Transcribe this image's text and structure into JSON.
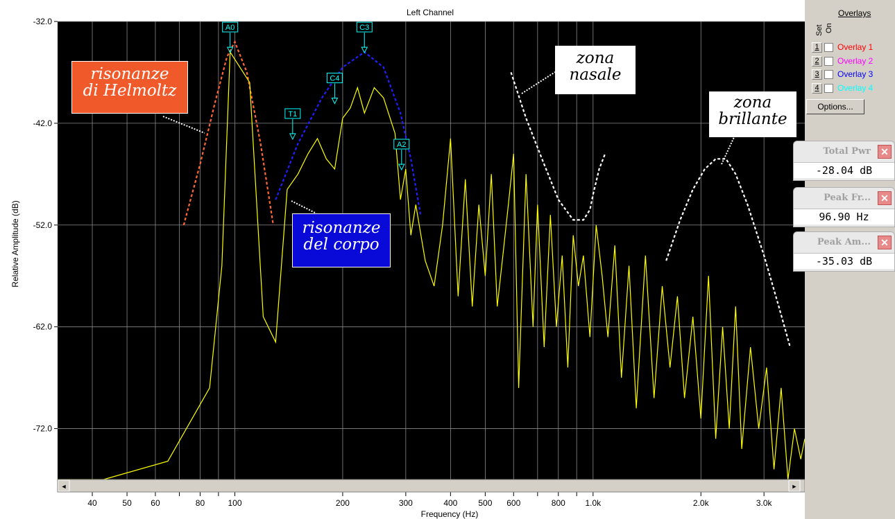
{
  "chart_data": {
    "type": "line",
    "title": "Left Channel",
    "xlabel": "Frequency (Hz)",
    "ylabel": "Relative Amplitude (dB)",
    "x_scale": "log",
    "xlim": [
      32,
      3900
    ],
    "ylim": [
      -77,
      -32
    ],
    "grid": true,
    "y_ticks": [
      {
        "value": -32,
        "label": "-32.0"
      },
      {
        "value": -42,
        "label": "-42.0"
      },
      {
        "value": -52,
        "label": "-52.0"
      },
      {
        "value": -62,
        "label": "-62.0"
      },
      {
        "value": -72,
        "label": "-72.0"
      }
    ],
    "x_ticks": [
      {
        "value": 40,
        "label": "40"
      },
      {
        "value": 50,
        "label": "50"
      },
      {
        "value": 60,
        "label": "60"
      },
      {
        "value": 80,
        "label": "80"
      },
      {
        "value": 100,
        "label": "100"
      },
      {
        "value": 200,
        "label": "200"
      },
      {
        "value": 300,
        "label": "300"
      },
      {
        "value": 400,
        "label": "400"
      },
      {
        "value": 500,
        "label": "500"
      },
      {
        "value": 600,
        "label": "600"
      },
      {
        "value": 800,
        "label": "800"
      },
      {
        "value": 1000,
        "label": "1.0k"
      },
      {
        "value": 2000,
        "label": "2.0k"
      },
      {
        "value": 3000,
        "label": "3.0k"
      }
    ],
    "series": [
      {
        "color": "#ffff00",
        "x": [
          32,
          43,
          65,
          85,
          92,
          97,
          110,
          120,
          130,
          140,
          150,
          160,
          170,
          180,
          190,
          200,
          210,
          220,
          230,
          245,
          260,
          280,
          290,
          300,
          310,
          320,
          340,
          360,
          380,
          400,
          420,
          440,
          460,
          480,
          500,
          520,
          540,
          560,
          580,
          600,
          620,
          650,
          680,
          700,
          730,
          760,
          790,
          820,
          850,
          880,
          910,
          940,
          980,
          1020,
          1060,
          1100,
          1150,
          1200,
          1260,
          1320,
          1400,
          1480,
          1560,
          1640,
          1720,
          1800,
          1900,
          2000,
          2100,
          2200,
          2300,
          2400,
          2500,
          2600,
          2750,
          2900,
          3050,
          3200,
          3350,
          3500,
          3650,
          3800,
          3900
        ],
        "y": [
          -77,
          -77,
          -75.2,
          -68,
          -56,
          -35,
          -38,
          -61,
          -63.5,
          -48.5,
          -47,
          -45,
          -43.5,
          -45.5,
          -46.5,
          -41.5,
          -40.5,
          -38.5,
          -41,
          -38.5,
          -39.5,
          -43,
          -49.5,
          -46.5,
          -53,
          -50,
          -55.5,
          -58,
          -52,
          -43.5,
          -59,
          -47.5,
          -60,
          -50,
          -57,
          -47,
          -60,
          -55,
          -50,
          -45,
          -68,
          -47,
          -62,
          -50,
          -64,
          -51,
          -62,
          -55,
          -66,
          -53,
          -58,
          -55,
          -63,
          -52,
          -57,
          -63,
          -54,
          -67,
          -56,
          -70,
          -55,
          -69,
          -58,
          -66,
          -59,
          -69,
          -61,
          -71,
          -57,
          -73,
          -62,
          -72,
          -60,
          -74,
          -64,
          -72,
          -66,
          -76,
          -68,
          -77,
          -72,
          -75,
          -73
        ]
      }
    ],
    "markers": [
      {
        "label": "A0",
        "x": 97,
        "y": -35
      },
      {
        "label": "T1",
        "x": 145,
        "y": -43.5
      },
      {
        "label": "C4",
        "x": 190,
        "y": -40
      },
      {
        "label": "C3",
        "x": 230,
        "y": -35
      },
      {
        "label": "A2",
        "x": 292,
        "y": -46.5
      }
    ],
    "overlay_curves": [
      {
        "color": "#ff6633",
        "dashed": true,
        "x": [
          72,
          80,
          88,
          95,
          100,
          108,
          118,
          128
        ],
        "y": [
          -52,
          -46,
          -40,
          -35.5,
          -34,
          -37,
          -44,
          -52
        ]
      },
      {
        "color": "#2020ff",
        "dashed": true,
        "x": [
          130,
          150,
          175,
          200,
          230,
          260,
          290,
          310,
          330
        ],
        "y": [
          -49.5,
          -44,
          -39.5,
          -36.5,
          -35,
          -36.5,
          -41,
          -45.5,
          -51
        ]
      },
      {
        "color": "#ffffff",
        "dashed": true,
        "x": [
          590,
          650,
          720,
          800,
          880,
          940,
          980,
          1000,
          1040,
          1080
        ],
        "y": [
          -37,
          -41.5,
          -45.5,
          -49.5,
          -51.5,
          -51.5,
          -50.5,
          -49,
          -46.5,
          -45
        ]
      },
      {
        "color": "#ffffff",
        "dashed": true,
        "x": [
          1600,
          1750,
          1900,
          2050,
          2200,
          2350,
          2500,
          2700,
          3000,
          3300,
          3550
        ],
        "y": [
          -55.5,
          -51.5,
          -48.5,
          -46.5,
          -45.5,
          -45.5,
          -47,
          -50,
          -55,
          -60,
          -64
        ]
      }
    ]
  },
  "annotations": {
    "helmholtz": [
      "risonanze",
      "di Helmoltz"
    ],
    "corpo": [
      "risonanze",
      "del corpo"
    ],
    "nasale": [
      "zona",
      "nasale"
    ],
    "brillante": [
      "zona",
      "brillante"
    ]
  },
  "overlays": {
    "title": "Overlays",
    "set_label": "Set",
    "on_label": "On",
    "items": [
      {
        "num": "1",
        "label": "Overlay 1",
        "color": "#ff0000"
      },
      {
        "num": "2",
        "label": "Overlay 2",
        "color": "#ff00ff"
      },
      {
        "num": "3",
        "label": "Overlay 3",
        "color": "#0000ff"
      },
      {
        "num": "4",
        "label": "Overlay 4",
        "color": "#00ffff"
      }
    ],
    "options_label": "Options..."
  },
  "readouts": [
    {
      "title": "Total Pwr",
      "value": "-28.04 dB"
    },
    {
      "title": "Peak Fr...",
      "value": "96.90 Hz"
    },
    {
      "title": "Peak Am...",
      "value": "-35.03 dB"
    }
  ],
  "scrollbar": {
    "left_arrow": "◄",
    "right_arrow": "►"
  },
  "close_glyph": "✕"
}
